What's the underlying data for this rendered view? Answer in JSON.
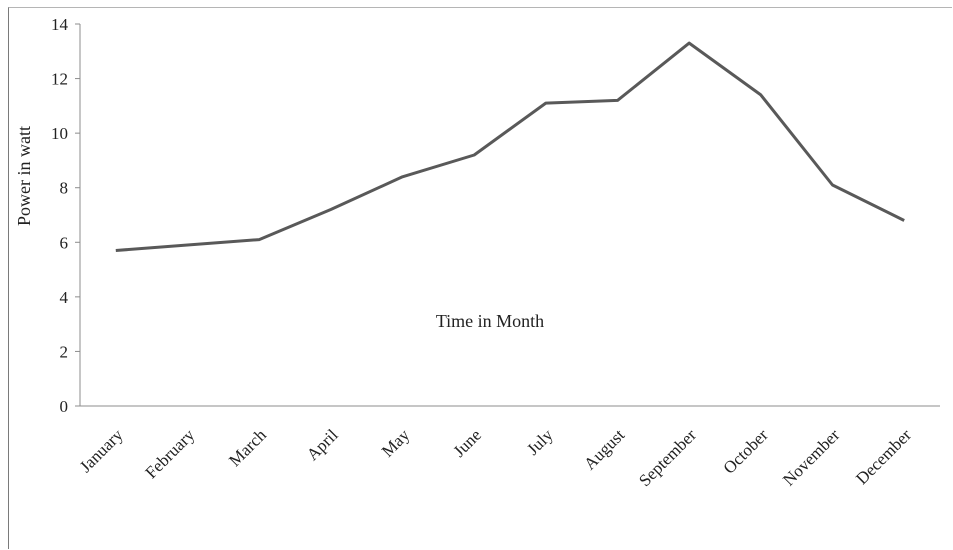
{
  "chart_data": {
    "type": "line",
    "categories": [
      "January",
      "February",
      "March",
      "April",
      "May",
      "June",
      "July",
      "August",
      "September",
      "October",
      "November",
      "December"
    ],
    "series": [
      {
        "values": [
          5.7,
          5.9,
          6.1,
          7.2,
          8.4,
          9.2,
          11.1,
          11.2,
          13.3,
          11.4,
          8.1,
          6.8
        ]
      }
    ],
    "ylabel": "Power in watt",
    "xlabel": "Time in Month",
    "ylim": [
      0,
      14
    ],
    "yticks": [
      0,
      2,
      4,
      6,
      8,
      10,
      12,
      14
    ],
    "grid": false,
    "legend": "none",
    "colors": {
      "line": "#595959",
      "axis": "#8c8c8c"
    }
  }
}
